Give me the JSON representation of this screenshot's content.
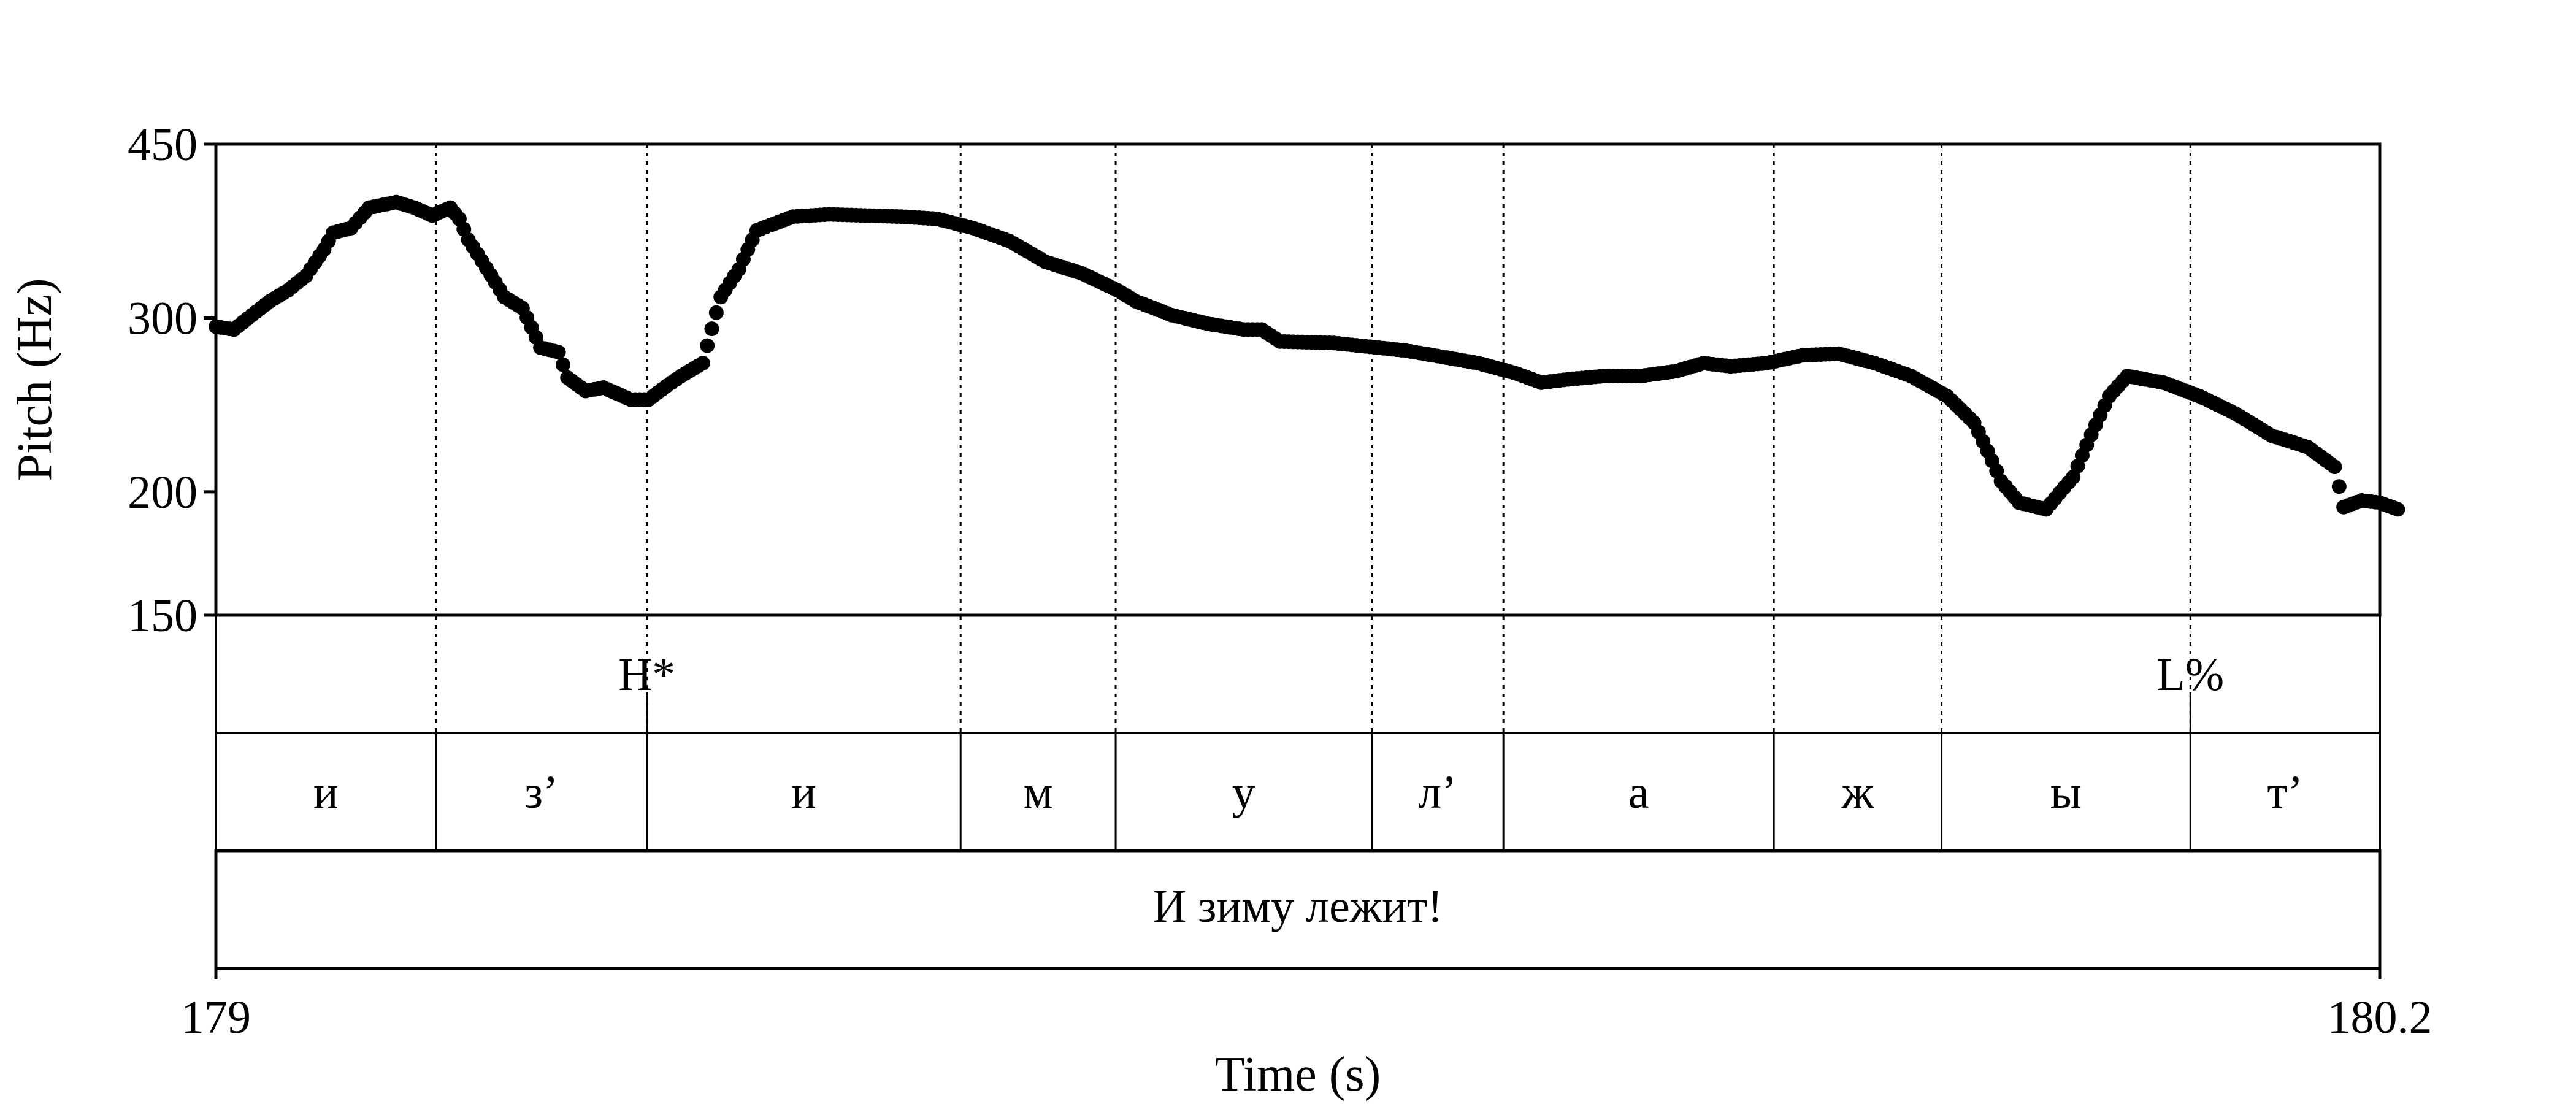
{
  "chart_data": {
    "type": "scatter",
    "title": "",
    "xlabel": "Time (s)",
    "ylabel": "Pitch (Hz)",
    "xlim": [
      179,
      180.2
    ],
    "ylim": [
      150,
      450
    ],
    "y_scale": "log",
    "x_tick_labels": [
      "179",
      "180.2"
    ],
    "y_tick_labels": [
      "450",
      "300",
      "200",
      "150"
    ],
    "y_ticks": [
      450,
      300,
      200,
      150
    ],
    "grid": false,
    "legend": "none",
    "marker_color": "#000000",
    "pitch_track": [
      [
        179.0,
        294
      ],
      [
        179.01,
        292
      ],
      [
        179.02,
        302
      ],
      [
        179.03,
        312
      ],
      [
        179.04,
        320
      ],
      [
        179.05,
        331
      ],
      [
        179.06,
        352
      ],
      [
        179.065,
        366
      ],
      [
        179.075,
        370
      ],
      [
        179.085,
        388
      ],
      [
        179.1,
        393
      ],
      [
        179.11,
        388
      ],
      [
        179.12,
        381
      ],
      [
        179.13,
        388
      ],
      [
        179.135,
        378
      ],
      [
        179.14,
        360
      ],
      [
        179.15,
        337
      ],
      [
        179.16,
        315
      ],
      [
        179.17,
        307
      ],
      [
        179.18,
        280
      ],
      [
        179.19,
        277
      ],
      [
        179.195,
        261
      ],
      [
        179.205,
        253
      ],
      [
        179.215,
        255
      ],
      [
        179.23,
        248
      ],
      [
        179.24,
        248
      ],
      [
        179.25,
        256
      ],
      [
        179.258,
        262
      ],
      [
        179.27,
        270
      ],
      [
        179.28,
        315
      ],
      [
        179.29,
        336
      ],
      [
        179.3,
        368
      ],
      [
        179.32,
        380
      ],
      [
        179.34,
        382
      ],
      [
        179.36,
        381
      ],
      [
        179.38,
        380
      ],
      [
        179.4,
        378
      ],
      [
        179.42,
        370
      ],
      [
        179.44,
        359
      ],
      [
        179.46,
        342
      ],
      [
        179.48,
        333
      ],
      [
        179.5,
        320
      ],
      [
        179.51,
        312
      ],
      [
        179.53,
        302
      ],
      [
        179.55,
        296
      ],
      [
        179.57,
        292
      ],
      [
        179.58,
        292
      ],
      [
        179.59,
        284
      ],
      [
        179.62,
        283
      ],
      [
        179.66,
        278
      ],
      [
        179.7,
        270
      ],
      [
        179.72,
        264
      ],
      [
        179.735,
        258
      ],
      [
        179.75,
        260
      ],
      [
        179.77,
        262
      ],
      [
        179.79,
        262
      ],
      [
        179.81,
        265
      ],
      [
        179.825,
        270
      ],
      [
        179.84,
        268
      ],
      [
        179.86,
        270
      ],
      [
        179.88,
        275
      ],
      [
        179.9,
        276
      ],
      [
        179.92,
        270
      ],
      [
        179.94,
        262
      ],
      [
        179.96,
        250
      ],
      [
        179.975,
        235
      ],
      [
        179.99,
        205
      ],
      [
        180.0,
        195
      ],
      [
        180.015,
        192
      ],
      [
        180.03,
        207
      ],
      [
        180.05,
        250
      ],
      [
        180.06,
        262
      ],
      [
        180.08,
        258
      ],
      [
        180.1,
        250
      ],
      [
        180.12,
        240
      ],
      [
        180.14,
        228
      ],
      [
        180.16,
        222
      ],
      [
        180.175,
        212
      ],
      [
        180.18,
        193
      ],
      [
        180.19,
        196
      ],
      [
        180.2,
        195
      ],
      [
        180.21,
        192
      ]
    ],
    "intervals": [
      179.0,
      179.122,
      179.239,
      179.413,
      179.499,
      179.641,
      179.714,
      179.864,
      179.957,
      180.095,
      180.2
    ],
    "tiers": {
      "tones": [
        {
          "label": "H*",
          "time": 179.239
        },
        {
          "label": "L%",
          "time": 180.095
        }
      ],
      "segments": [
        {
          "label": "и"
        },
        {
          "label": "з’"
        },
        {
          "label": "и"
        },
        {
          "label": "м"
        },
        {
          "label": "у"
        },
        {
          "label": "л’"
        },
        {
          "label": "а"
        },
        {
          "label": "ж"
        },
        {
          "label": "ы"
        },
        {
          "label": "т’"
        }
      ],
      "utterance": "И зиму лежит!"
    }
  }
}
